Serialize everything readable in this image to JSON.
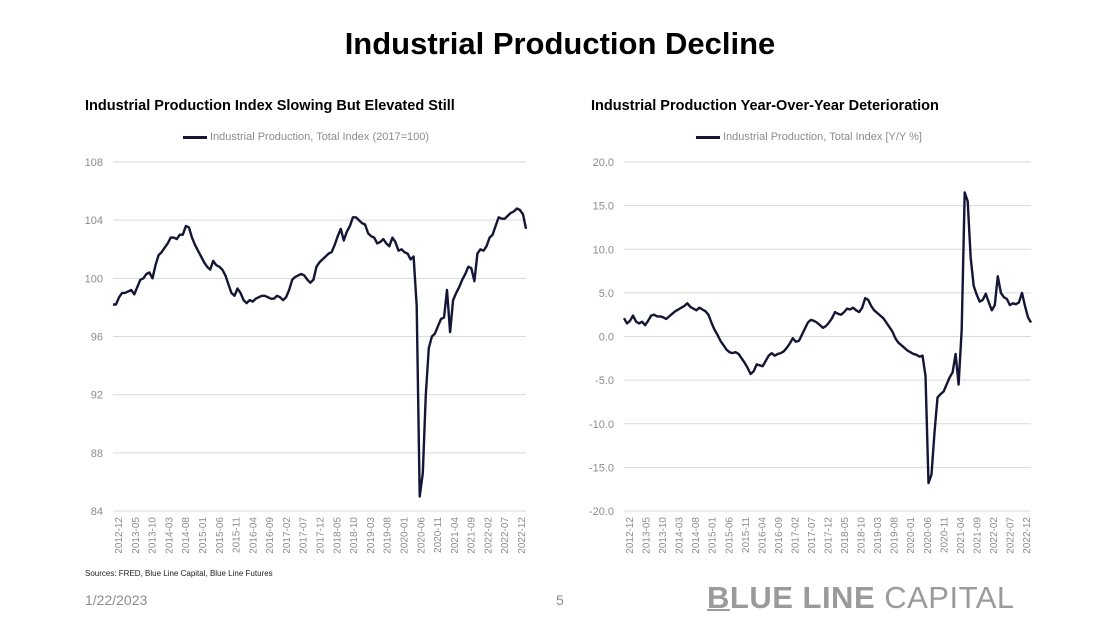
{
  "slide": {
    "title": "Industrial Production Decline",
    "sources": "Sources: FRED, Blue Line Capital, Blue Line Futures",
    "date": "1/22/2023",
    "page_number": "5",
    "brand": {
      "part1_underlined": "B",
      "part1_rest": "LUE LINE",
      "part2": " CAPITAL"
    },
    "colors": {
      "line": "#141636",
      "grid": "#d9d9d9",
      "axis_text": "#8c8c8c"
    }
  },
  "chart_data": [
    {
      "type": "line",
      "title": "Industrial Production Index Slowing But Elevated Still",
      "legend_position": "top-center",
      "grid": true,
      "ylim": [
        84,
        108
      ],
      "yticks": [
        84,
        88,
        92,
        96,
        100,
        104,
        108
      ],
      "ytick_labels": [
        "84",
        "88",
        "92",
        "96",
        "100",
        "104",
        "108"
      ],
      "xtick_labels": [
        "2012-12",
        "2013-05",
        "2013-10",
        "2014-03",
        "2014-08",
        "2015-01",
        "2015-06",
        "2015-11",
        "2016-04",
        "2016-09",
        "2017-02",
        "2017-07",
        "2017-12",
        "2018-05",
        "2018-10",
        "2019-03",
        "2019-08",
        "2020-01",
        "2020-06",
        "2020-11",
        "2021-04",
        "2021-09",
        "2022-02",
        "2022-07",
        "2022-12"
      ],
      "x_start": "2012-12",
      "x_end": "2022-12",
      "series": [
        {
          "name": "Industrial Production, Total Index (2017=100)",
          "values": [
            98.2,
            98.2,
            98.7,
            99.0,
            99.0,
            99.1,
            99.2,
            98.9,
            99.4,
            99.9,
            100.0,
            100.3,
            100.4,
            100.0,
            100.9,
            101.6,
            101.8,
            102.1,
            102.4,
            102.8,
            102.8,
            102.7,
            103.0,
            103.0,
            103.6,
            103.5,
            102.8,
            102.3,
            101.9,
            101.5,
            101.1,
            100.8,
            100.6,
            101.2,
            100.9,
            100.8,
            100.6,
            100.2,
            99.6,
            99.0,
            98.8,
            99.3,
            99.0,
            98.5,
            98.3,
            98.5,
            98.4,
            98.6,
            98.7,
            98.8,
            98.8,
            98.7,
            98.6,
            98.6,
            98.8,
            98.7,
            98.5,
            98.7,
            99.2,
            99.9,
            100.1,
            100.2,
            100.3,
            100.2,
            99.9,
            99.7,
            99.9,
            100.8,
            101.1,
            101.3,
            101.5,
            101.7,
            101.8,
            102.3,
            102.9,
            103.4,
            102.6,
            103.2,
            103.6,
            104.2,
            104.2,
            104.0,
            103.8,
            103.7,
            103.1,
            102.9,
            102.8,
            102.4,
            102.5,
            102.7,
            102.4,
            102.2,
            102.8,
            102.5,
            101.9,
            102.0,
            101.8,
            101.7,
            101.3,
            101.5,
            98.1,
            85.0,
            86.6,
            92.0,
            95.2,
            96.0,
            96.2,
            96.7,
            97.2,
            97.3,
            99.2,
            96.3,
            98.5,
            99.0,
            99.4,
            99.9,
            100.3,
            100.8,
            100.7,
            99.8,
            101.7,
            102.0,
            101.9,
            102.2,
            102.8,
            103.0,
            103.6,
            104.2,
            104.1,
            104.1,
            104.3,
            104.5,
            104.6,
            104.8,
            104.7,
            104.4,
            103.4
          ]
        }
      ]
    },
    {
      "type": "line",
      "title": "Industrial Production Year-Over-Year Deterioration",
      "legend_position": "top-center",
      "grid": true,
      "ylim": [
        -20,
        20
      ],
      "yticks": [
        -20,
        -15,
        -10,
        -5,
        0,
        5,
        10,
        15,
        20
      ],
      "ytick_labels": [
        "-20.0",
        "-15.0",
        "-10.0",
        "-5.0",
        "0.0",
        "5.0",
        "10.0",
        "15.0",
        "20.0"
      ],
      "xtick_labels": [
        "2012-12",
        "2013-05",
        "2013-10",
        "2014-03",
        "2014-08",
        "2015-01",
        "2015-06",
        "2015-11",
        "2016-04",
        "2016-09",
        "2017-02",
        "2017-07",
        "2017-12",
        "2018-05",
        "2018-10",
        "2019-03",
        "2019-08",
        "2020-01",
        "2020-06",
        "2020-11",
        "2021-04",
        "2021-09",
        "2022-02",
        "2022-07",
        "2022-12"
      ],
      "x_start": "2012-12",
      "x_end": "2022-12",
      "series": [
        {
          "name": "Industrial Production, Total Index [Y/Y %]",
          "values": [
            2.1,
            1.5,
            1.8,
            2.4,
            1.7,
            1.5,
            1.7,
            1.3,
            1.8,
            2.4,
            2.5,
            2.3,
            2.3,
            2.2,
            2.0,
            2.3,
            2.6,
            2.9,
            3.1,
            3.3,
            3.5,
            3.8,
            3.4,
            3.2,
            3.0,
            3.3,
            3.1,
            2.9,
            2.5,
            1.6,
            0.8,
            0.2,
            -0.5,
            -1.0,
            -1.5,
            -1.8,
            -1.9,
            -1.8,
            -2.0,
            -2.5,
            -3.0,
            -3.6,
            -4.3,
            -4.0,
            -3.2,
            -3.3,
            -3.4,
            -2.8,
            -2.2,
            -1.9,
            -2.2,
            -2.0,
            -1.9,
            -1.7,
            -1.3,
            -0.8,
            -0.2,
            -0.6,
            -0.5,
            0.2,
            0.9,
            1.6,
            1.9,
            1.8,
            1.6,
            1.3,
            1.0,
            1.2,
            1.6,
            2.1,
            2.8,
            2.6,
            2.5,
            2.8,
            3.2,
            3.1,
            3.3,
            3.0,
            2.8,
            3.3,
            4.4,
            4.2,
            3.5,
            3.0,
            2.7,
            2.4,
            2.1,
            1.6,
            1.1,
            0.6,
            -0.2,
            -0.7,
            -1.0,
            -1.3,
            -1.6,
            -1.8,
            -2.0,
            -2.1,
            -2.3,
            -2.2,
            -4.5,
            -16.8,
            -15.8,
            -11.0,
            -7.0,
            -6.6,
            -6.3,
            -5.5,
            -4.7,
            -4.1,
            -2.0,
            -5.5,
            0.8,
            16.5,
            15.5,
            9.0,
            5.8,
            4.8,
            4.0,
            4.2,
            4.9,
            3.9,
            3.0,
            3.6,
            6.9,
            5.0,
            4.5,
            4.3,
            3.6,
            3.8,
            3.7,
            3.9,
            5.0,
            3.5,
            2.2,
            1.6
          ]
        }
      ]
    }
  ]
}
